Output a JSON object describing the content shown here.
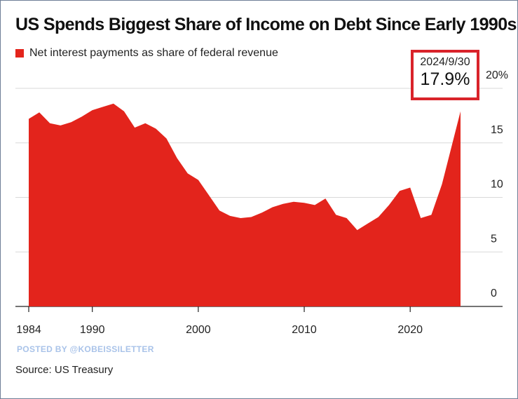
{
  "title": "US Spends Biggest Share of Income on Debt Since Early 1990s",
  "legend_label": "Net interest payments as share of federal revenue",
  "callout": {
    "date": "2024/9/30",
    "value": "17.9%"
  },
  "watermark": "POSTED BY @KOBEISSILETTER",
  "source": "Source: US Treasury",
  "colors": {
    "area": "#e3241c",
    "callout_border": "#d9232a",
    "grid": "#d9d9d9"
  },
  "chart_data": {
    "type": "area",
    "series": [
      {
        "name": "Net interest payments as share of federal revenue",
        "x": [
          1984,
          1985,
          1986,
          1987,
          1988,
          1989,
          1990,
          1991,
          1992,
          1993,
          1994,
          1995,
          1996,
          1997,
          1998,
          1999,
          2000,
          2001,
          2002,
          2003,
          2004,
          2005,
          2006,
          2007,
          2008,
          2009,
          2010,
          2011,
          2012,
          2013,
          2014,
          2015,
          2016,
          2017,
          2018,
          2019,
          2020,
          2021,
          2022,
          2023,
          2024.75
        ],
        "y": [
          17.2,
          17.8,
          16.8,
          16.6,
          16.9,
          17.4,
          18.0,
          18.3,
          18.6,
          17.9,
          16.4,
          16.8,
          16.3,
          15.4,
          13.6,
          12.2,
          11.6,
          10.2,
          8.8,
          8.3,
          8.1,
          8.2,
          8.6,
          9.1,
          9.4,
          9.6,
          9.5,
          9.3,
          9.9,
          8.4,
          8.1,
          7.0,
          7.6,
          8.2,
          9.3,
          10.6,
          10.9,
          8.1,
          8.4,
          11.2,
          17.9
        ]
      }
    ],
    "xticks": [
      "1984",
      "1990",
      "2000",
      "2010",
      "2020"
    ],
    "yticks": [
      "0",
      "5",
      "10",
      "15",
      "20%"
    ],
    "xlim": [
      1984,
      2024.75
    ],
    "ylim": [
      0,
      20
    ],
    "grid": true
  }
}
